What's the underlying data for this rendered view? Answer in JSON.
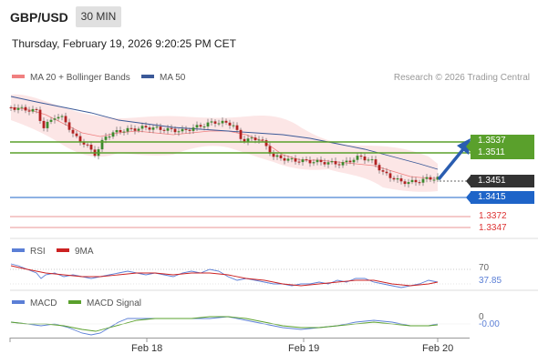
{
  "header": {
    "symbol": "GBP/USD",
    "timeframe": "30 MIN",
    "datetime": "Thursday, February 19, 2026 9:20:25 PM CET"
  },
  "legend": {
    "ma20": "MA 20 + Bollinger Bands",
    "ma50": "MA 50",
    "credit": "Research © 2026 Trading Central"
  },
  "price_levels": {
    "r2": "1.3537",
    "r1": "1.3511",
    "current": "1.3451",
    "pivot": "1.3415",
    "s1": "1.3372",
    "s2": "1.3347"
  },
  "rsi": {
    "label": "RSI",
    "ma_label": "9MA",
    "level": "70",
    "value": "37.85"
  },
  "macd": {
    "label": "MACD",
    "signal_label": "MACD Signal",
    "level": "0",
    "value": "-0.00"
  },
  "x_axis": {
    "labels": [
      "Feb 18",
      "Feb 19",
      "Feb 20"
    ]
  },
  "colors": {
    "ma20": "#f08080",
    "ma50": "#3b5998",
    "resistance": "#5aa02c",
    "pivot": "#1e64c8",
    "support": "#e07070",
    "rsi": "#5b7fd6",
    "rsi_ma": "#cc2222",
    "macd": "#5b7fd6",
    "macd_signal": "#5aa02c",
    "arrow": "#2a5db0"
  },
  "chart_data": {
    "type": "candlestick",
    "x": [
      "Feb 18",
      "Feb 19",
      "Feb 20"
    ],
    "resistance": [
      1.3537,
      1.3511
    ],
    "pivot": 1.3415,
    "support": [
      1.3372,
      1.3347
    ],
    "last": 1.3451,
    "rsi_last": 37.85,
    "rsi_ref": 70,
    "macd_last": -0.0,
    "macd_ref": 0
  }
}
